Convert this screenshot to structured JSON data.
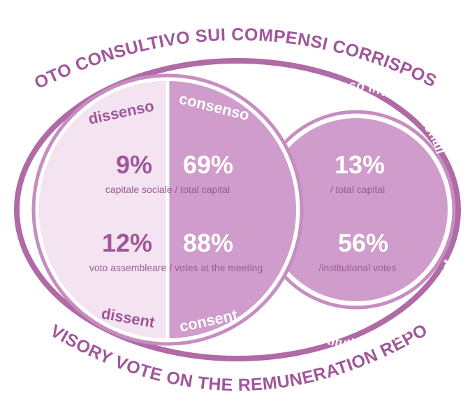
{
  "title": "VOTO CONSULTIVO SUI COMPENSI CORRISPOSTI",
  "subtitle": "ADVISORY VOTE ON THE REMUNERATION REPORT",
  "labels": {
    "dissenso": "dissenso",
    "consenso": "consenso",
    "institutional_it": "consenso inv. istituzionali",
    "dissent": "dissent",
    "consent": "consent",
    "institutional_en": "institutional investors consent"
  },
  "rows": [
    {
      "dissent": "9%",
      "consent": "69%",
      "institutional": "13%",
      "caption": "capitale sociale / total capital",
      "institutional_caption": "/ total capital"
    },
    {
      "dissent": "12%",
      "consent": "88%",
      "institutional": "56%",
      "caption": "voto assembleare / votes at the meeting",
      "institutional_caption": "/institutional votes"
    }
  ]
}
